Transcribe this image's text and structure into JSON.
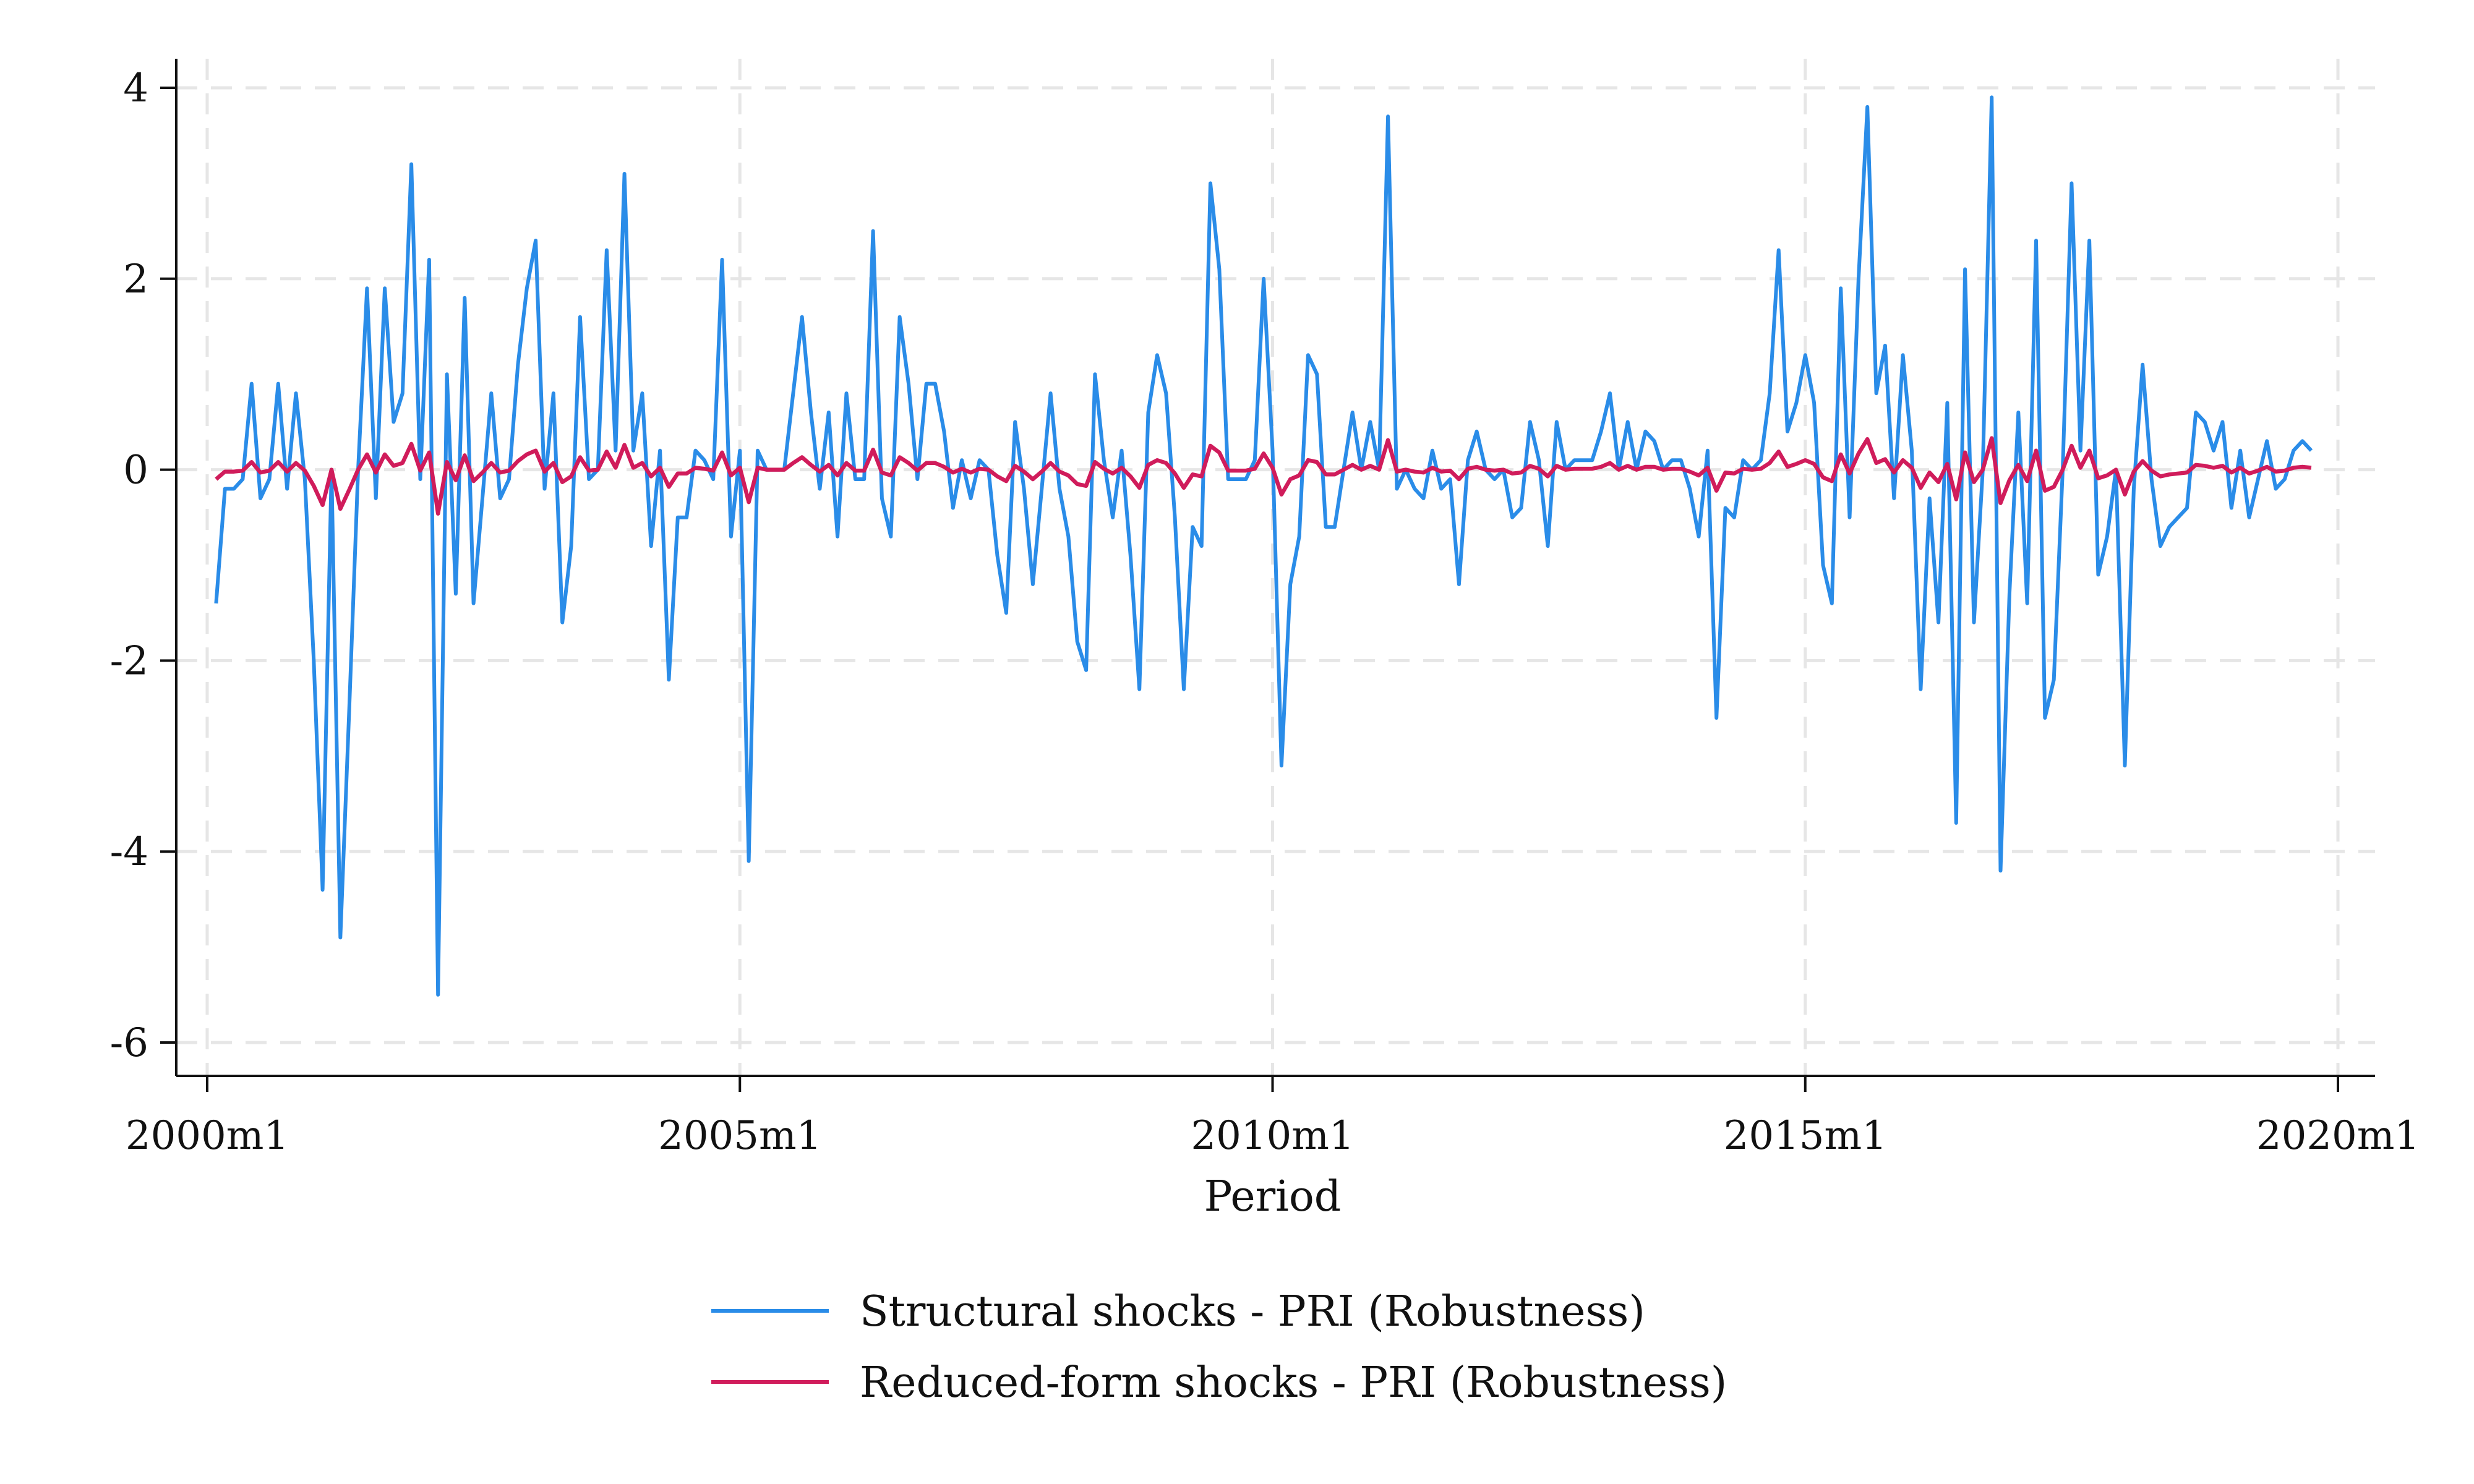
{
  "chart_data": {
    "type": "line",
    "title": "",
    "xlabel": "Period",
    "ylabel": "",
    "xlim": [
      "2000m1",
      "2020m1"
    ],
    "ylim": [
      -6,
      4
    ],
    "x_ticks": [
      "2000m1",
      "2005m1",
      "2010m1",
      "2015m1",
      "2020m1"
    ],
    "y_ticks": [
      -6,
      -4,
      -2,
      0,
      2,
      4
    ],
    "y_tick_labels": [
      "-6",
      "-4",
      "-2",
      "0",
      "2",
      "4"
    ],
    "grid": true,
    "legend_position": "bottom",
    "x_start": "2000m2",
    "x_end": "2019m12",
    "frequency": "monthly",
    "series": [
      {
        "name": "Structural shocks - PRI (Robustness)",
        "color": "#2a8ce8",
        "values": [
          -1.4,
          -0.2,
          -0.2,
          -0.1,
          0.9,
          -0.3,
          -0.1,
          0.9,
          -0.2,
          0.8,
          -0.1,
          -2.0,
          -4.4,
          0.0,
          -4.9,
          -2.5,
          0.0,
          1.9,
          -0.3,
          1.9,
          0.5,
          0.8,
          3.2,
          -0.1,
          2.2,
          -5.5,
          1.0,
          -1.3,
          1.8,
          -1.4,
          -0.3,
          0.8,
          -0.3,
          -0.1,
          1.1,
          1.9,
          2.4,
          -0.2,
          0.8,
          -1.6,
          -0.8,
          1.6,
          -0.1,
          0.0,
          2.3,
          0.2,
          3.1,
          0.2,
          0.8,
          -0.8,
          0.2,
          -2.2,
          -0.5,
          -0.5,
          0.2,
          0.1,
          -0.1,
          2.2,
          -0.7,
          0.2,
          -4.1,
          0.2,
          0.0,
          0.0,
          0.0,
          0.8,
          1.6,
          0.6,
          -0.2,
          0.6,
          -0.7,
          0.8,
          -0.1,
          -0.1,
          2.5,
          -0.3,
          -0.7,
          1.6,
          0.9,
          -0.1,
          0.9,
          0.9,
          0.4,
          -0.4,
          0.1,
          -0.3,
          0.1,
          0.0,
          -0.9,
          -1.5,
          0.5,
          -0.2,
          -1.2,
          -0.2,
          0.8,
          -0.2,
          -0.7,
          -1.8,
          -2.1,
          1.0,
          0.1,
          -0.5,
          0.2,
          -0.9,
          -2.3,
          0.6,
          1.2,
          0.8,
          -0.5,
          -2.3,
          -0.6,
          -0.8,
          3.0,
          2.1,
          -0.1,
          -0.1,
          -0.1,
          0.1,
          2.0,
          0.2,
          -3.1,
          -1.2,
          -0.7,
          1.2,
          1.0,
          -0.6,
          -0.6,
          0.0,
          0.6,
          0.0,
          0.5,
          0.0,
          3.7,
          -0.2,
          0.0,
          -0.2,
          -0.3,
          0.2,
          -0.2,
          -0.1,
          -1.2,
          0.1,
          0.4,
          0.0,
          -0.1,
          0.0,
          -0.5,
          -0.4,
          0.5,
          0.1,
          -0.8,
          0.5,
          0.0,
          0.1,
          0.1,
          0.1,
          0.4,
          0.8,
          0.0,
          0.5,
          0.0,
          0.4,
          0.3,
          0.0,
          0.1,
          0.1,
          -0.2,
          -0.7,
          0.2,
          -2.6,
          -0.4,
          -0.5,
          0.1,
          0.0,
          0.1,
          0.8,
          2.3,
          0.4,
          0.7,
          1.2,
          0.7,
          -1.0,
          -1.4,
          1.9,
          -0.5,
          2.0,
          3.8,
          0.8,
          1.3,
          -0.3,
          1.2,
          0.2,
          -2.3,
          -0.3,
          -1.6,
          0.7,
          -3.7,
          2.1,
          -1.6,
          0.0,
          3.9,
          -4.2,
          -1.3,
          0.6,
          -1.4,
          2.4,
          -2.6,
          -2.2,
          0.0,
          3.0,
          0.2,
          2.4,
          -1.1,
          -0.7,
          0.0,
          -3.1,
          -0.2,
          1.1,
          -0.1,
          -0.8,
          -0.6,
          -0.5,
          -0.4,
          0.6,
          0.5,
          0.2,
          0.5,
          -0.4,
          0.2,
          -0.5,
          -0.1,
          0.3,
          -0.2,
          -0.1,
          0.2,
          0.3,
          0.2
        ]
      },
      {
        "name": "Reduced-form shocks - PRI (Robustness)",
        "color": "#d01c5b",
        "values": [
          -0.1,
          -0.02,
          -0.02,
          -0.01,
          0.08,
          -0.03,
          -0.01,
          0.08,
          -0.02,
          0.07,
          -0.01,
          -0.17,
          -0.37,
          0.0,
          -0.41,
          -0.21,
          0.0,
          0.16,
          -0.03,
          0.16,
          0.04,
          0.07,
          0.27,
          -0.01,
          0.18,
          -0.46,
          0.08,
          -0.11,
          0.15,
          -0.12,
          -0.03,
          0.07,
          -0.03,
          -0.01,
          0.09,
          0.16,
          0.2,
          -0.02,
          0.07,
          -0.13,
          -0.07,
          0.13,
          -0.01,
          0.0,
          0.19,
          0.02,
          0.26,
          0.02,
          0.07,
          -0.07,
          0.02,
          -0.18,
          -0.04,
          -0.04,
          0.02,
          0.01,
          -0.01,
          0.18,
          -0.06,
          0.02,
          -0.34,
          0.02,
          0.0,
          0.0,
          0.0,
          0.07,
          0.13,
          0.05,
          -0.02,
          0.05,
          -0.06,
          0.07,
          -0.01,
          -0.01,
          0.21,
          -0.03,
          -0.06,
          0.13,
          0.07,
          -0.01,
          0.07,
          0.07,
          0.03,
          -0.03,
          0.01,
          -0.03,
          0.01,
          0.0,
          -0.07,
          -0.12,
          0.04,
          -0.02,
          -0.1,
          -0.02,
          0.07,
          -0.02,
          -0.06,
          -0.15,
          -0.17,
          0.08,
          0.01,
          -0.04,
          0.02,
          -0.07,
          -0.19,
          0.05,
          0.1,
          0.07,
          -0.04,
          -0.19,
          -0.05,
          -0.07,
          0.25,
          0.18,
          -0.01,
          -0.01,
          -0.01,
          0.01,
          0.17,
          0.02,
          -0.26,
          -0.1,
          -0.06,
          0.1,
          0.08,
          -0.05,
          -0.05,
          0.0,
          0.05,
          0.0,
          0.04,
          0.0,
          0.31,
          -0.02,
          0.0,
          -0.02,
          -0.03,
          0.02,
          -0.02,
          -0.01,
          -0.1,
          0.01,
          0.03,
          0.0,
          -0.01,
          0.0,
          -0.04,
          -0.03,
          0.04,
          0.01,
          -0.07,
          0.04,
          0.0,
          0.01,
          0.01,
          0.01,
          0.03,
          0.07,
          0.0,
          0.04,
          0.0,
          0.03,
          0.03,
          0.0,
          0.01,
          0.01,
          -0.02,
          -0.06,
          0.02,
          -0.22,
          -0.03,
          -0.04,
          0.01,
          0.0,
          0.01,
          0.07,
          0.19,
          0.03,
          0.06,
          0.1,
          0.06,
          -0.08,
          -0.12,
          0.16,
          -0.04,
          0.17,
          0.32,
          0.07,
          0.11,
          -0.03,
          0.1,
          0.02,
          -0.19,
          -0.03,
          -0.13,
          0.06,
          -0.31,
          0.18,
          -0.13,
          0.0,
          0.33,
          -0.35,
          -0.11,
          0.05,
          -0.12,
          0.2,
          -0.22,
          -0.18,
          0.0,
          0.25,
          0.02,
          0.2,
          -0.09,
          -0.06,
          0.0,
          -0.26,
          -0.02,
          0.09,
          -0.01,
          -0.07,
          -0.05,
          -0.04,
          -0.03,
          0.05,
          0.04,
          0.02,
          0.04,
          -0.03,
          0.02,
          -0.04,
          -0.01,
          0.03,
          -0.02,
          -0.01,
          0.02,
          0.03,
          0.02
        ]
      }
    ]
  }
}
